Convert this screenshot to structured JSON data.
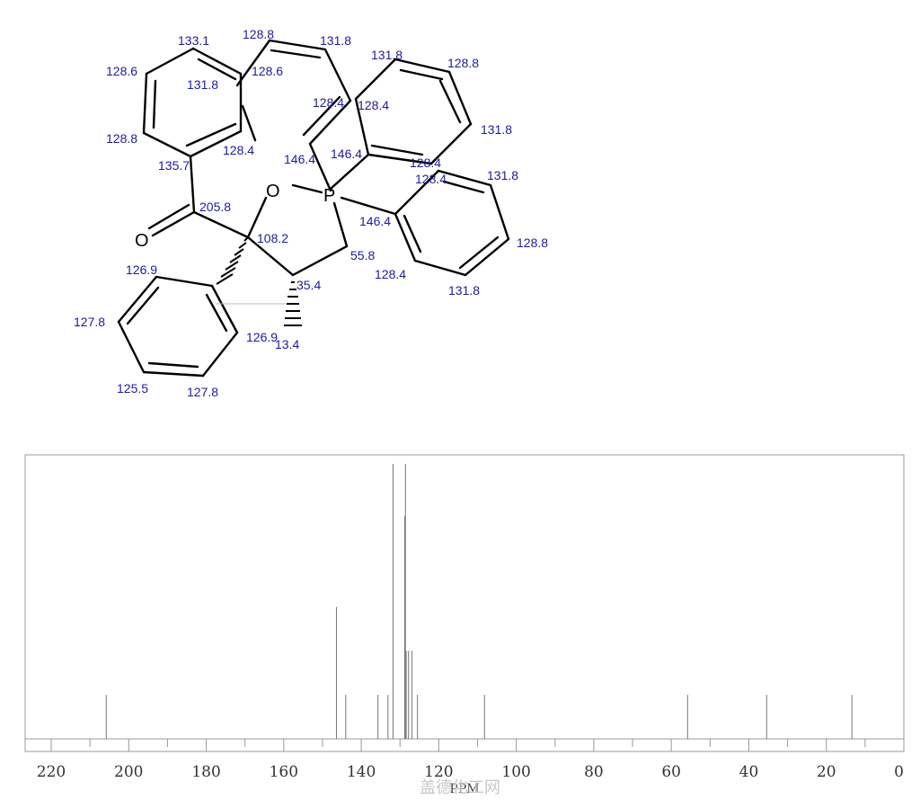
{
  "structure": {
    "atoms": {
      "oxygen_ring": "O",
      "phosphorus": "P",
      "oxygen_carbonyl": "O"
    },
    "shift_labels": [
      "133.1",
      "128.8",
      "131.8",
      "128.6",
      "131.8",
      "128.6",
      "131.8",
      "128.8",
      "128.4",
      "128.4",
      "128.8",
      "128.4",
      "146.4",
      "146.4",
      "131.8",
      "135.7",
      "128.4",
      "128.4",
      "131.8",
      "205.8",
      "108.2",
      "146.4",
      "128.8",
      "55.8",
      "126.9",
      "35.4",
      "128.4",
      "131.8",
      "127.8",
      "126.9",
      "13.4",
      "125.5",
      "127.8"
    ]
  },
  "watermark": "盖德化工网",
  "chart_data": {
    "type": "bar",
    "title": "",
    "xlabel": "PPM",
    "ylabel": "",
    "xlim": [
      220,
      0
    ],
    "xticks": [
      220,
      200,
      180,
      160,
      140,
      120,
      100,
      80,
      60,
      40,
      20,
      0
    ],
    "grid": false,
    "peaks": [
      {
        "ppm": 205.8,
        "intensity": 0.16
      },
      {
        "ppm": 146.4,
        "intensity": 0.48
      },
      {
        "ppm": 144.0,
        "intensity": 0.16
      },
      {
        "ppm": 135.7,
        "intensity": 0.16
      },
      {
        "ppm": 133.1,
        "intensity": 0.16
      },
      {
        "ppm": 131.8,
        "intensity": 1.0
      },
      {
        "ppm": 128.8,
        "intensity": 0.81
      },
      {
        "ppm": 128.6,
        "intensity": 1.0
      },
      {
        "ppm": 128.4,
        "intensity": 0.32
      },
      {
        "ppm": 127.8,
        "intensity": 0.32
      },
      {
        "ppm": 126.9,
        "intensity": 0.32
      },
      {
        "ppm": 125.5,
        "intensity": 0.16
      },
      {
        "ppm": 108.2,
        "intensity": 0.16
      },
      {
        "ppm": 55.8,
        "intensity": 0.16
      },
      {
        "ppm": 35.4,
        "intensity": 0.16
      },
      {
        "ppm": 13.4,
        "intensity": 0.16
      }
    ]
  }
}
